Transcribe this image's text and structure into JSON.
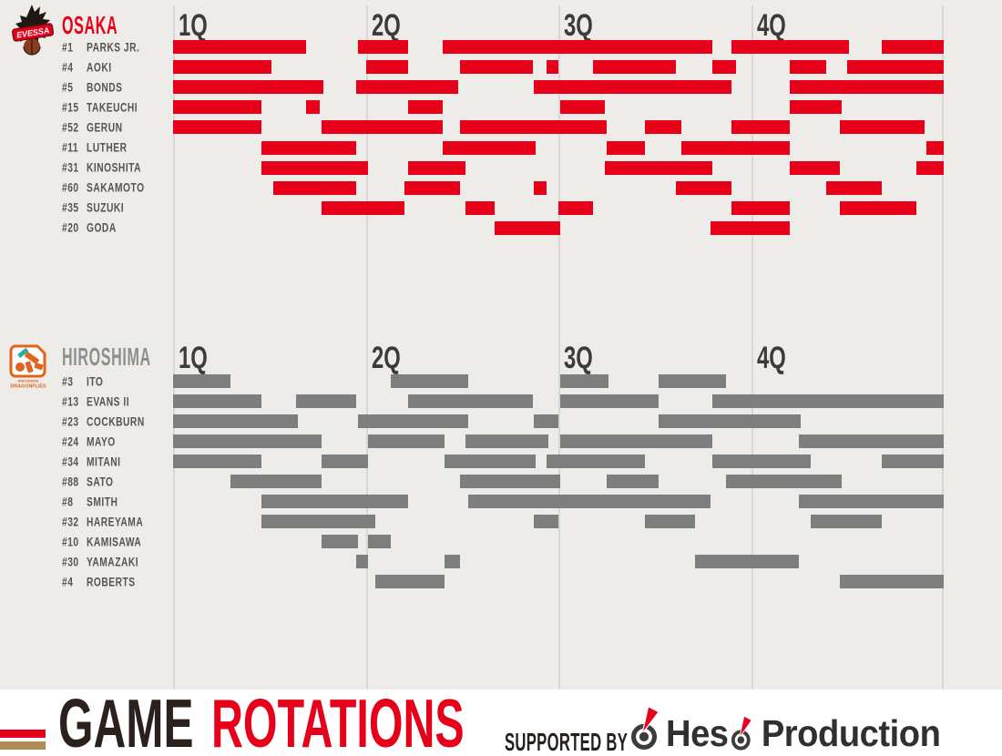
{
  "quarters": [
    "1Q",
    "2Q",
    "3Q",
    "4Q"
  ],
  "timeline": {
    "total_minutes": 40,
    "quarter_count": 4
  },
  "colors": {
    "osaka_red": "#e60019",
    "hiroshima_gray": "#7e7e7e",
    "background_gray": "#edece9",
    "footer_white": "#ffffff",
    "tan_stripe": "#b18a58",
    "dark_title": "#2b211c"
  },
  "teams": [
    {
      "name": "OSAKA",
      "bar_color": "#e60019",
      "logo_text": "EVESSA",
      "players": [
        {
          "number": "#1",
          "name": "PARKS JR.",
          "stints": [
            [
              0,
              6.9
            ],
            [
              9.6,
              12.2
            ],
            [
              14.0,
              28.0
            ],
            [
              29.0,
              35.1
            ],
            [
              36.8,
              40
            ]
          ]
        },
        {
          "number": "#4",
          "name": "AOKI",
          "stints": [
            [
              0,
              5.1
            ],
            [
              10.0,
              12.2
            ],
            [
              14.9,
              18.7
            ],
            [
              19.4,
              20.0
            ],
            [
              21.8,
              26.1
            ],
            [
              28.0,
              29.2
            ],
            [
              32.0,
              33.9
            ],
            [
              35.0,
              40
            ]
          ]
        },
        {
          "number": "#5",
          "name": "BONDS",
          "stints": [
            [
              0,
              7.8
            ],
            [
              9.5,
              14.8
            ],
            [
              18.7,
              29.0
            ],
            [
              32.0,
              40
            ]
          ]
        },
        {
          "number": "#15",
          "name": "TAKEUCHI",
          "stints": [
            [
              0,
              4.6
            ],
            [
              6.9,
              7.6
            ],
            [
              12.2,
              14.0
            ],
            [
              20.1,
              22.4
            ],
            [
              32.0,
              34.7
            ]
          ]
        },
        {
          "number": "#52",
          "name": "GERUN",
          "stints": [
            [
              0,
              4.6
            ],
            [
              7.7,
              14.0
            ],
            [
              14.9,
              22.5
            ],
            [
              24.5,
              26.4
            ],
            [
              29.0,
              32.0
            ],
            [
              34.6,
              39.0
            ]
          ]
        },
        {
          "number": "#11",
          "name": "LUTHER",
          "stints": [
            [
              4.6,
              9.5
            ],
            [
              14.0,
              18.8
            ],
            [
              22.5,
              24.5
            ],
            [
              26.4,
              32.0
            ],
            [
              39.1,
              40
            ]
          ]
        },
        {
          "number": "#31",
          "name": "KINOSHITA",
          "stints": [
            [
              4.6,
              10.1
            ],
            [
              12.2,
              15.2
            ],
            [
              22.4,
              28.0
            ],
            [
              32.0,
              34.6
            ],
            [
              38.6,
              40
            ]
          ]
        },
        {
          "number": "#60",
          "name": "SAKAMOTO",
          "stints": [
            [
              5.2,
              9.5
            ],
            [
              12.0,
              14.9
            ],
            [
              18.7,
              19.4
            ],
            [
              26.1,
              29.0
            ],
            [
              33.9,
              36.8
            ]
          ]
        },
        {
          "number": "#35",
          "name": "SUZUKI",
          "stints": [
            [
              7.7,
              12.0
            ],
            [
              15.2,
              16.7
            ],
            [
              20.0,
              21.8
            ],
            [
              29.0,
              32.0
            ],
            [
              34.6,
              38.6
            ]
          ]
        },
        {
          "number": "#20",
          "name": "GODA",
          "stints": [
            [
              16.7,
              20.1
            ],
            [
              27.9,
              32.0
            ]
          ]
        }
      ]
    },
    {
      "name": "HIROSHIMA",
      "bar_color": "#7e7e7e",
      "logo_text_line1": "HIROSHIMA",
      "logo_text_line2": "DRAGONFLIES",
      "players": [
        {
          "number": "#3",
          "name": "ITO",
          "stints": [
            [
              0,
              3.0
            ],
            [
              11.3,
              15.3
            ],
            [
              20.1,
              22.6
            ],
            [
              25.2,
              28.7
            ]
          ]
        },
        {
          "number": "#13",
          "name": "EVANS II",
          "stints": [
            [
              0,
              4.6
            ],
            [
              6.4,
              9.5
            ],
            [
              12.2,
              18.7
            ],
            [
              20.1,
              25.2
            ],
            [
              28.0,
              40
            ]
          ]
        },
        {
          "number": "#23",
          "name": "COCKBURN",
          "stints": [
            [
              0,
              6.5
            ],
            [
              9.6,
              15.3
            ],
            [
              18.7,
              20.0
            ],
            [
              25.2,
              32.6
            ]
          ]
        },
        {
          "number": "#24",
          "name": "MAYO",
          "stints": [
            [
              0,
              7.7
            ],
            [
              10.1,
              14.1
            ],
            [
              15.2,
              19.5
            ],
            [
              20.1,
              28.0
            ],
            [
              32.5,
              40
            ]
          ]
        },
        {
          "number": "#34",
          "name": "MITANI",
          "stints": [
            [
              0,
              4.6
            ],
            [
              7.7,
              10.1
            ],
            [
              14.1,
              18.8
            ],
            [
              19.4,
              24.5
            ],
            [
              28.0,
              33.1
            ],
            [
              36.8,
              40
            ]
          ]
        },
        {
          "number": "#88",
          "name": "SATO",
          "stints": [
            [
              3.0,
              7.7
            ],
            [
              14.9,
              20.1
            ],
            [
              22.5,
              25.2
            ],
            [
              28.7,
              34.7
            ]
          ]
        },
        {
          "number": "#8",
          "name": "SMITH",
          "stints": [
            [
              4.6,
              12.2
            ],
            [
              15.3,
              27.9
            ],
            [
              32.5,
              40
            ]
          ]
        },
        {
          "number": "#32",
          "name": "HAREYAMA",
          "stints": [
            [
              4.6,
              10.5
            ],
            [
              18.7,
              20.0
            ],
            [
              24.5,
              27.1
            ],
            [
              33.1,
              36.8
            ]
          ]
        },
        {
          "number": "#10",
          "name": "KAMISAWA",
          "stints": [
            [
              7.7,
              9.6
            ],
            [
              10.1,
              11.3
            ]
          ]
        },
        {
          "number": "#30",
          "name": "YAMAZAKI",
          "stints": [
            [
              9.5,
              10.1
            ],
            [
              14.1,
              14.9
            ],
            [
              27.1,
              32.5
            ]
          ]
        },
        {
          "number": "#4",
          "name": "ROBERTS",
          "stints": [
            [
              10.5,
              14.1
            ],
            [
              34.6,
              40
            ]
          ]
        }
      ]
    }
  ],
  "footer": {
    "title_word1": "GAME",
    "title_word2": "ROTATIONS",
    "supported_by": "SUPPORTED BY",
    "sponsor": {
      "full_name": "Heso Production",
      "before_mark": "Hes",
      "after_mark": "Production"
    }
  },
  "chart_data": {
    "type": "bar",
    "subtype": "gantt-rotation-timeline",
    "title": "GAME ROTATIONS",
    "x_axis": {
      "labels": [
        "1Q",
        "2Q",
        "3Q",
        "4Q"
      ],
      "range_minutes": [
        0,
        40
      ],
      "gridlines_every_minutes": 10
    },
    "series": [
      {
        "team": "OSAKA",
        "color": "#e60019",
        "rows": [
          {
            "player": "#1 PARKS JR.",
            "stints_min": [
              [
                0,
                6.9
              ],
              [
                9.6,
                12.2
              ],
              [
                14.0,
                28.0
              ],
              [
                29.0,
                35.1
              ],
              [
                36.8,
                40
              ]
            ]
          },
          {
            "player": "#4 AOKI",
            "stints_min": [
              [
                0,
                5.1
              ],
              [
                10.0,
                12.2
              ],
              [
                14.9,
                18.7
              ],
              [
                19.4,
                20.0
              ],
              [
                21.8,
                26.1
              ],
              [
                28.0,
                29.2
              ],
              [
                32.0,
                33.9
              ],
              [
                35.0,
                40
              ]
            ]
          },
          {
            "player": "#5 BONDS",
            "stints_min": [
              [
                0,
                7.8
              ],
              [
                9.5,
                14.8
              ],
              [
                18.7,
                29.0
              ],
              [
                32.0,
                40
              ]
            ]
          },
          {
            "player": "#15 TAKEUCHI",
            "stints_min": [
              [
                0,
                4.6
              ],
              [
                6.9,
                7.6
              ],
              [
                12.2,
                14.0
              ],
              [
                20.1,
                22.4
              ],
              [
                32.0,
                34.7
              ]
            ]
          },
          {
            "player": "#52 GERUN",
            "stints_min": [
              [
                0,
                4.6
              ],
              [
                7.7,
                14.0
              ],
              [
                14.9,
                22.5
              ],
              [
                24.5,
                26.4
              ],
              [
                29.0,
                32.0
              ],
              [
                34.6,
                39.0
              ]
            ]
          },
          {
            "player": "#11 LUTHER",
            "stints_min": [
              [
                4.6,
                9.5
              ],
              [
                14.0,
                18.8
              ],
              [
                22.5,
                24.5
              ],
              [
                26.4,
                32.0
              ],
              [
                39.1,
                40
              ]
            ]
          },
          {
            "player": "#31 KINOSHITA",
            "stints_min": [
              [
                4.6,
                10.1
              ],
              [
                12.2,
                15.2
              ],
              [
                22.4,
                28.0
              ],
              [
                32.0,
                34.6
              ],
              [
                38.6,
                40
              ]
            ]
          },
          {
            "player": "#60 SAKAMOTO",
            "stints_min": [
              [
                5.2,
                9.5
              ],
              [
                12.0,
                14.9
              ],
              [
                18.7,
                19.4
              ],
              [
                26.1,
                29.0
              ],
              [
                33.9,
                36.8
              ]
            ]
          },
          {
            "player": "#35 SUZUKI",
            "stints_min": [
              [
                7.7,
                12.0
              ],
              [
                15.2,
                16.7
              ],
              [
                20.0,
                21.8
              ],
              [
                29.0,
                32.0
              ],
              [
                34.6,
                38.6
              ]
            ]
          },
          {
            "player": "#20 GODA",
            "stints_min": [
              [
                16.7,
                20.1
              ],
              [
                27.9,
                32.0
              ]
            ]
          }
        ]
      },
      {
        "team": "HIROSHIMA",
        "color": "#7e7e7e",
        "rows": [
          {
            "player": "#3 ITO",
            "stints_min": [
              [
                0,
                3.0
              ],
              [
                11.3,
                15.3
              ],
              [
                20.1,
                22.6
              ],
              [
                25.2,
                28.7
              ]
            ]
          },
          {
            "player": "#13 EVANS II",
            "stints_min": [
              [
                0,
                4.6
              ],
              [
                6.4,
                9.5
              ],
              [
                12.2,
                18.7
              ],
              [
                20.1,
                25.2
              ],
              [
                28.0,
                40
              ]
            ]
          },
          {
            "player": "#23 COCKBURN",
            "stints_min": [
              [
                0,
                6.5
              ],
              [
                9.6,
                15.3
              ],
              [
                18.7,
                20.0
              ],
              [
                25.2,
                32.6
              ]
            ]
          },
          {
            "player": "#24 MAYO",
            "stints_min": [
              [
                0,
                7.7
              ],
              [
                10.1,
                14.1
              ],
              [
                15.2,
                19.5
              ],
              [
                20.1,
                28.0
              ],
              [
                32.5,
                40
              ]
            ]
          },
          {
            "player": "#34 MITANI",
            "stints_min": [
              [
                0,
                4.6
              ],
              [
                7.7,
                10.1
              ],
              [
                14.1,
                18.8
              ],
              [
                19.4,
                24.5
              ],
              [
                28.0,
                33.1
              ],
              [
                36.8,
                40
              ]
            ]
          },
          {
            "player": "#88 SATO",
            "stints_min": [
              [
                3.0,
                7.7
              ],
              [
                14.9,
                20.1
              ],
              [
                22.5,
                25.2
              ],
              [
                28.7,
                34.7
              ]
            ]
          },
          {
            "player": "#8 SMITH",
            "stints_min": [
              [
                4.6,
                12.2
              ],
              [
                15.3,
                27.9
              ],
              [
                32.5,
                40
              ]
            ]
          },
          {
            "player": "#32 HAREYAMA",
            "stints_min": [
              [
                4.6,
                10.5
              ],
              [
                18.7,
                20.0
              ],
              [
                24.5,
                27.1
              ],
              [
                33.1,
                36.8
              ]
            ]
          },
          {
            "player": "#10 KAMISAWA",
            "stints_min": [
              [
                7.7,
                9.6
              ],
              [
                10.1,
                11.3
              ]
            ]
          },
          {
            "player": "#30 YAMAZAKI",
            "stints_min": [
              [
                9.5,
                10.1
              ],
              [
                14.1,
                14.9
              ],
              [
                27.1,
                32.5
              ]
            ]
          },
          {
            "player": "#4 ROBERTS",
            "stints_min": [
              [
                10.5,
                14.1
              ],
              [
                34.6,
                40
              ]
            ]
          }
        ]
      }
    ]
  }
}
